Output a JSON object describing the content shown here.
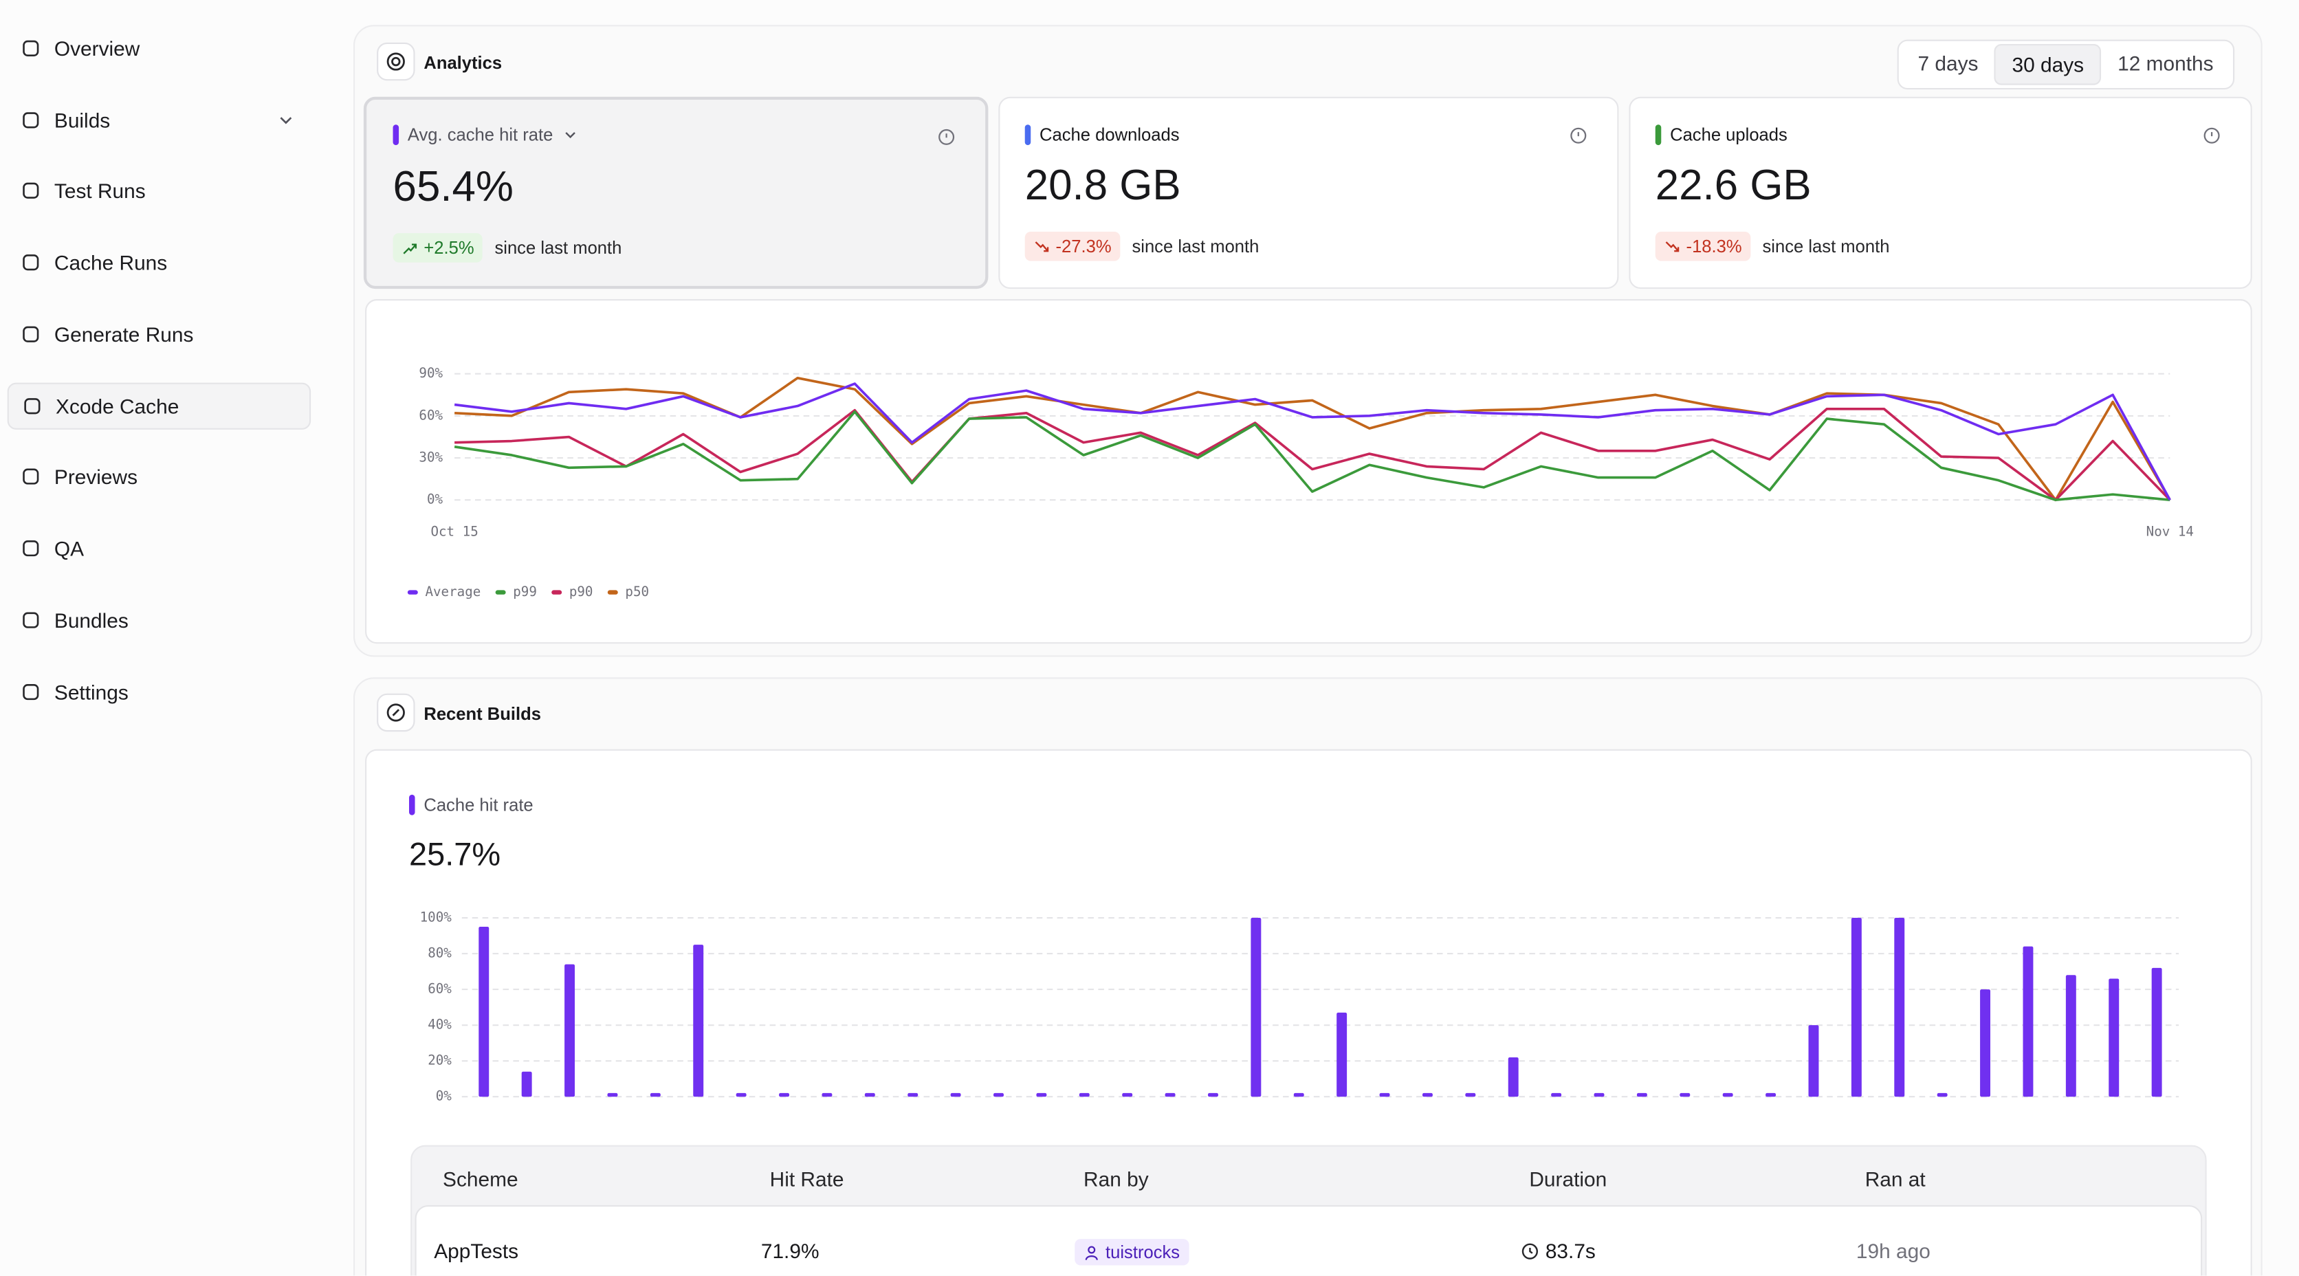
{
  "sidebar": {
    "items": [
      "Overview",
      "Builds",
      "Test Runs",
      "Cache Runs",
      "Generate Runs",
      "Xcode Cache",
      "Previews",
      "QA",
      "Bundles",
      "Settings"
    ],
    "active_item": "Xcode Cache",
    "expandable_item": "Builds"
  },
  "analytics": {
    "title": "Analytics",
    "periods": [
      "7 days",
      "30 days",
      "12 months"
    ],
    "selected_period": "30 days",
    "cards": [
      {
        "label": "Avg. cache hit rate",
        "value": "65.4%",
        "change": "+2.5%",
        "note": "since last month",
        "color": "#6f2cf1",
        "trend": "up",
        "selected": true
      },
      {
        "label": "Cache downloads",
        "value": "20.8 GB",
        "change": "-27.3%",
        "note": "since last month",
        "color": "#4a6cf0",
        "trend": "down",
        "selected": false
      },
      {
        "label": "Cache uploads",
        "value": "22.6 GB",
        "change": "-18.3%",
        "note": "since last month",
        "color": "#3b9a3b",
        "trend": "down",
        "selected": false
      }
    ]
  },
  "recent_builds": {
    "title": "Recent Builds",
    "metric_label": "Cache hit rate",
    "metric_value": "25.7%",
    "metric_color": "#6f2cf1",
    "table": {
      "columns": [
        "Scheme",
        "Hit Rate",
        "Ran by",
        "Duration",
        "Ran at"
      ],
      "rows": [
        [
          "AppTests",
          "71.9%",
          "tuistrocks",
          "83.7s",
          "19h ago"
        ]
      ]
    }
  },
  "chart_data": [
    {
      "type": "line",
      "categories": [
        "Oct 15",
        null,
        null,
        null,
        null,
        null,
        null,
        null,
        null,
        null,
        null,
        null,
        null,
        null,
        null,
        null,
        null,
        null,
        null,
        null,
        null,
        null,
        null,
        null,
        null,
        null,
        null,
        null,
        null,
        null,
        "Nov 14"
      ],
      "series": [
        {
          "name": "Average",
          "color": "#6f2cf1",
          "values": [
            68,
            63,
            69,
            65,
            74,
            59,
            67,
            83,
            41,
            72,
            78,
            65,
            62,
            67,
            72,
            59,
            60,
            64,
            62,
            61,
            59,
            64,
            65,
            61,
            74,
            75,
            64,
            47,
            54,
            75,
            0
          ]
        },
        {
          "name": "p99",
          "color": "#3b9a3b",
          "values": [
            38,
            32,
            23,
            24,
            40,
            14,
            15,
            63,
            12,
            58,
            59,
            32,
            46,
            30,
            54,
            6,
            25,
            16,
            9,
            24,
            16,
            16,
            35,
            7,
            58,
            54,
            23,
            14,
            0,
            4,
            0
          ]
        },
        {
          "name": "p90",
          "color": "#c7265a",
          "values": [
            41,
            42,
            45,
            24,
            47,
            20,
            33,
            64,
            13,
            58,
            62,
            41,
            48,
            32,
            55,
            22,
            33,
            24,
            22,
            48,
            35,
            35,
            43,
            29,
            65,
            65,
            31,
            30,
            0,
            42,
            0
          ]
        },
        {
          "name": "p50",
          "color": "#c2651a",
          "values": [
            62,
            60,
            77,
            79,
            76,
            59,
            87,
            79,
            40,
            69,
            74,
            68,
            62,
            77,
            68,
            71,
            51,
            62,
            64,
            65,
            70,
            75,
            67,
            61,
            76,
            75,
            69,
            54,
            0,
            70,
            0
          ]
        }
      ],
      "ylim": [
        0,
        100
      ],
      "yticks": [
        {
          "value": 0,
          "label": "0%"
        },
        {
          "value": 30,
          "label": "30%"
        },
        {
          "value": 60,
          "label": "60%"
        },
        {
          "value": 90,
          "label": "90%"
        }
      ],
      "grid": true,
      "legend": "bottom-left"
    },
    {
      "type": "bar",
      "values": [
        95,
        14,
        74,
        0,
        0,
        85,
        0,
        0,
        0,
        0,
        0,
        0,
        0,
        0,
        0,
        0,
        0,
        0,
        100,
        0,
        47,
        0,
        0,
        0,
        22,
        0,
        0,
        0,
        0,
        0,
        0,
        40,
        100,
        100,
        0,
        60,
        84,
        68,
        66,
        72
      ],
      "color": "#7030f0",
      "ylim": [
        0,
        100
      ],
      "yticks": [
        {
          "value": 0,
          "label": "0%"
        },
        {
          "value": 20,
          "label": "20%"
        },
        {
          "value": 40,
          "label": "40%"
        },
        {
          "value": 60,
          "label": "60%"
        },
        {
          "value": 80,
          "label": "80%"
        },
        {
          "value": 100,
          "label": "100%"
        }
      ],
      "grid": true
    }
  ]
}
